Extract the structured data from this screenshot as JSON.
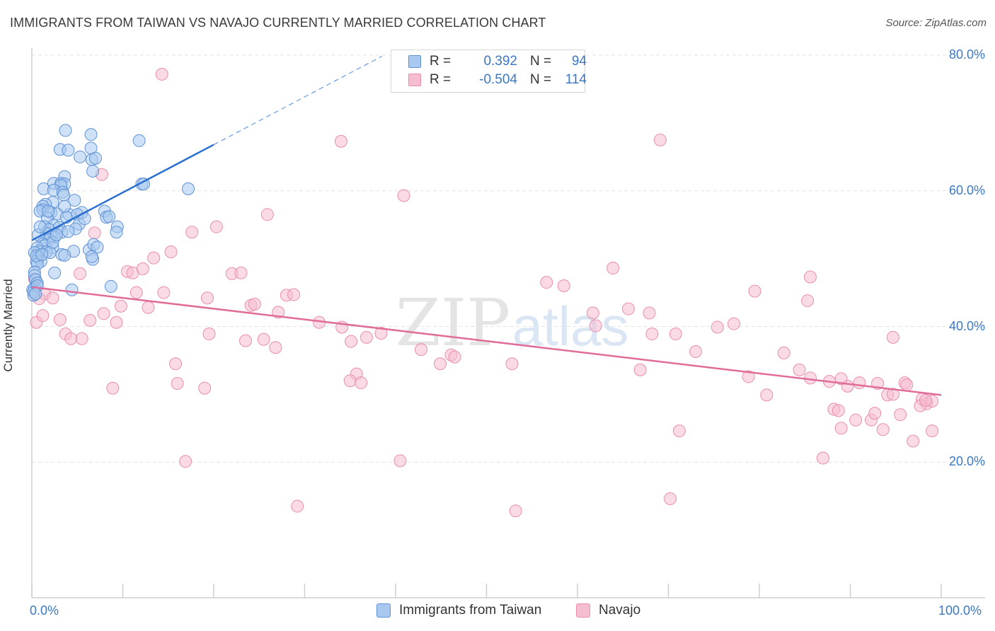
{
  "header": {
    "title": "IMMIGRANTS FROM TAIWAN VS NAVAJO CURRENTLY MARRIED CORRELATION CHART",
    "source": "Source: ZipAtlas.com"
  },
  "watermark": {
    "left": "ZIP",
    "right": "atlas"
  },
  "legend": {
    "rows": [
      {
        "r_label": "R =",
        "r_value": "0.392",
        "n_label": "N =",
        "n_value": "94"
      },
      {
        "r_label": "R =",
        "r_value": "-0.504",
        "n_label": "N =",
        "n_value": "114"
      }
    ]
  },
  "colors": {
    "taiwan_fill": "#a8c8ef",
    "taiwan_stroke": "#5f92d4",
    "taiwan_line": "#2a6fd0",
    "navajo_fill": "#f6bcd0",
    "navajo_stroke": "#e88fae",
    "navajo_line": "#e06d99",
    "grid": "#e3e3e3",
    "axis": "#cfcfcf",
    "tick_text": "#3b78c4"
  },
  "chart_data": {
    "type": "scatter",
    "title": "IMMIGRANTS FROM TAIWAN VS NAVAJO CURRENTLY MARRIED CORRELATION CHART",
    "xlabel": "",
    "ylabel": "Currently Married",
    "xlim": [
      0,
      100
    ],
    "ylim": [
      0,
      80
    ],
    "x_tick_labels": [
      "0.0%",
      "100.0%"
    ],
    "y_tick_labels": [
      "20.0%",
      "40.0%",
      "60.0%",
      "80.0%"
    ],
    "y_ticks": [
      20,
      40,
      60,
      80
    ],
    "grid": true,
    "legend_placement": "bottom-center",
    "series": [
      {
        "name": "Immigrants from Taiwan",
        "r": 0.392,
        "n": 94,
        "trend": {
          "x0": 0,
          "y0": 52.7,
          "x1": 20,
          "y1": 66.8,
          "dashed_to_x": 38.5
        },
        "points": [
          [
            3.7,
            68.9
          ],
          [
            3.1,
            66.1
          ],
          [
            4.0,
            66.0
          ],
          [
            6.5,
            68.3
          ],
          [
            6.5,
            66.3
          ],
          [
            11.8,
            67.4
          ],
          [
            5.3,
            65.0
          ],
          [
            6.6,
            64.6
          ],
          [
            7.0,
            64.8
          ],
          [
            6.7,
            62.9
          ],
          [
            3.6,
            62.1
          ],
          [
            2.4,
            61.1
          ],
          [
            3.2,
            61.1
          ],
          [
            3.6,
            61.0
          ],
          [
            3.2,
            60.8
          ],
          [
            1.3,
            60.3
          ],
          [
            2.4,
            60.1
          ],
          [
            3.4,
            59.8
          ],
          [
            3.5,
            59.4
          ],
          [
            12.1,
            61.0
          ],
          [
            12.3,
            61.0
          ],
          [
            17.2,
            60.3
          ],
          [
            2.3,
            58.3
          ],
          [
            1.5,
            58.0
          ],
          [
            1.2,
            57.7
          ],
          [
            4.7,
            58.6
          ],
          [
            1.2,
            57.2
          ],
          [
            0.9,
            57.0
          ],
          [
            2.1,
            56.8
          ],
          [
            2.8,
            56.6
          ],
          [
            4.1,
            56.5
          ],
          [
            5.5,
            56.8
          ],
          [
            3.8,
            56.1
          ],
          [
            5.0,
            56.5
          ],
          [
            1.7,
            56.0
          ],
          [
            8.0,
            57.0
          ],
          [
            8.2,
            56.1
          ],
          [
            8.5,
            56.2
          ],
          [
            5.2,
            55.1
          ],
          [
            2.4,
            54.9
          ],
          [
            1.4,
            54.7
          ],
          [
            1.9,
            54.3
          ],
          [
            3.0,
            54.6
          ],
          [
            4.8,
            54.4
          ],
          [
            9.4,
            54.7
          ],
          [
            3.3,
            53.9
          ],
          [
            1.6,
            53.7
          ],
          [
            2.1,
            53.3
          ],
          [
            0.7,
            53.5
          ],
          [
            2.5,
            53.2
          ],
          [
            1.9,
            52.8
          ],
          [
            1.2,
            52.2
          ],
          [
            9.3,
            53.9
          ],
          [
            1.4,
            51.9
          ],
          [
            2.3,
            51.6
          ],
          [
            4.6,
            51.1
          ],
          [
            6.3,
            51.3
          ],
          [
            6.8,
            52.1
          ],
          [
            7.2,
            51.7
          ],
          [
            0.6,
            51.6
          ],
          [
            0.8,
            51.1
          ],
          [
            0.3,
            50.9
          ],
          [
            3.3,
            50.6
          ],
          [
            1.6,
            51.0
          ],
          [
            2.0,
            50.9
          ],
          [
            3.6,
            50.5
          ],
          [
            0.7,
            50.2
          ],
          [
            0.5,
            49.6
          ],
          [
            1.0,
            49.6
          ],
          [
            6.7,
            49.9
          ],
          [
            6.6,
            50.3
          ],
          [
            0.6,
            49.2
          ],
          [
            0.3,
            48.0
          ],
          [
            2.5,
            47.9
          ],
          [
            0.3,
            47.5
          ],
          [
            0.4,
            46.9
          ],
          [
            0.6,
            46.4
          ],
          [
            8.7,
            45.9
          ],
          [
            0.3,
            45.7
          ],
          [
            0.1,
            45.4
          ],
          [
            4.4,
            45.4
          ],
          [
            0.2,
            44.6
          ],
          [
            0.2,
            45.1
          ],
          [
            0.6,
            46.0
          ],
          [
            0.4,
            44.8
          ],
          [
            0.5,
            50.4
          ],
          [
            1.1,
            50.6
          ],
          [
            2.3,
            52.4
          ],
          [
            4.0,
            54.0
          ],
          [
            5.8,
            55.9
          ],
          [
            1.8,
            57.0
          ],
          [
            0.9,
            54.7
          ],
          [
            2.7,
            53.5
          ],
          [
            3.6,
            57.7
          ]
        ]
      },
      {
        "name": "Navajo",
        "r": -0.504,
        "n": 114,
        "trend": {
          "x0": 0,
          "y0": 45.8,
          "x1": 100,
          "y1": 29.9
        },
        "points": [
          [
            14.3,
            77.2
          ],
          [
            34.0,
            67.3
          ],
          [
            69.1,
            67.5
          ],
          [
            7.7,
            62.4
          ],
          [
            40.9,
            59.3
          ],
          [
            25.9,
            56.5
          ],
          [
            20.3,
            54.7
          ],
          [
            17.6,
            53.9
          ],
          [
            6.9,
            53.8
          ],
          [
            15.3,
            51.0
          ],
          [
            13.4,
            50.1
          ],
          [
            63.9,
            48.6
          ],
          [
            10.5,
            48.1
          ],
          [
            11.1,
            47.9
          ],
          [
            22.0,
            47.8
          ],
          [
            23.0,
            47.9
          ],
          [
            5.3,
            47.8
          ],
          [
            85.6,
            47.3
          ],
          [
            56.6,
            46.5
          ],
          [
            58.5,
            46.0
          ],
          [
            0.3,
            47.0
          ],
          [
            1.4,
            44.8
          ],
          [
            11.5,
            45.0
          ],
          [
            0.8,
            44.1
          ],
          [
            2.3,
            44.2
          ],
          [
            9.8,
            43.0
          ],
          [
            12.8,
            42.8
          ],
          [
            19.3,
            44.2
          ],
          [
            24.1,
            43.1
          ],
          [
            24.5,
            43.3
          ],
          [
            28.0,
            44.6
          ],
          [
            28.8,
            44.7
          ],
          [
            61.7,
            42.0
          ],
          [
            65.6,
            42.6
          ],
          [
            67.9,
            42.0
          ],
          [
            79.5,
            45.2
          ],
          [
            85.3,
            43.8
          ],
          [
            7.9,
            41.9
          ],
          [
            3.1,
            41.0
          ],
          [
            6.4,
            40.9
          ],
          [
            9.3,
            40.6
          ],
          [
            0.5,
            40.6
          ],
          [
            31.6,
            40.6
          ],
          [
            34.1,
            39.9
          ],
          [
            38.4,
            39.0
          ],
          [
            14.5,
            45.0
          ],
          [
            12.2,
            48.5
          ],
          [
            27.1,
            42.1
          ],
          [
            62.0,
            40.1
          ],
          [
            68.2,
            38.9
          ],
          [
            70.8,
            38.9
          ],
          [
            75.4,
            39.9
          ],
          [
            77.2,
            40.4
          ],
          [
            3.7,
            38.9
          ],
          [
            4.3,
            38.2
          ],
          [
            5.5,
            38.2
          ],
          [
            19.5,
            38.9
          ],
          [
            23.5,
            37.9
          ],
          [
            25.5,
            38.1
          ],
          [
            35.1,
            37.8
          ],
          [
            35.7,
            33.0
          ],
          [
            36.8,
            38.4
          ],
          [
            42.8,
            36.6
          ],
          [
            44.9,
            34.5
          ],
          [
            46.1,
            35.8
          ],
          [
            46.5,
            35.5
          ],
          [
            26.8,
            36.9
          ],
          [
            35.0,
            32.0
          ],
          [
            36.2,
            31.7
          ],
          [
            15.8,
            34.5
          ],
          [
            16.0,
            31.6
          ],
          [
            19.0,
            30.9
          ],
          [
            8.9,
            30.9
          ],
          [
            52.8,
            34.5
          ],
          [
            66.9,
            33.6
          ],
          [
            73.0,
            36.3
          ],
          [
            82.7,
            36.1
          ],
          [
            85.6,
            32.4
          ],
          [
            87.7,
            31.9
          ],
          [
            89.7,
            31.2
          ],
          [
            91.0,
            31.7
          ],
          [
            93.0,
            31.6
          ],
          [
            94.1,
            29.9
          ],
          [
            94.7,
            30.0
          ],
          [
            96.0,
            31.7
          ],
          [
            96.2,
            31.4
          ],
          [
            97.9,
            29.3
          ],
          [
            98.4,
            28.6
          ],
          [
            99.0,
            29.0
          ],
          [
            78.8,
            32.6
          ],
          [
            89.0,
            32.3
          ],
          [
            84.4,
            33.6
          ],
          [
            94.7,
            38.4
          ],
          [
            80.8,
            29.9
          ],
          [
            88.2,
            27.8
          ],
          [
            88.7,
            27.6
          ],
          [
            90.6,
            26.2
          ],
          [
            92.3,
            26.2
          ],
          [
            92.7,
            27.2
          ],
          [
            95.5,
            27.0
          ],
          [
            97.7,
            28.3
          ],
          [
            89.0,
            25.0
          ],
          [
            93.6,
            24.8
          ],
          [
            96.9,
            23.1
          ],
          [
            99.0,
            24.6
          ],
          [
            71.2,
            24.6
          ],
          [
            87.0,
            20.6
          ],
          [
            16.9,
            20.1
          ],
          [
            40.5,
            20.2
          ],
          [
            29.2,
            13.5
          ],
          [
            53.2,
            12.8
          ],
          [
            70.2,
            14.6
          ],
          [
            98.3,
            29.1
          ],
          [
            1.2,
            41.6
          ]
        ]
      }
    ]
  }
}
